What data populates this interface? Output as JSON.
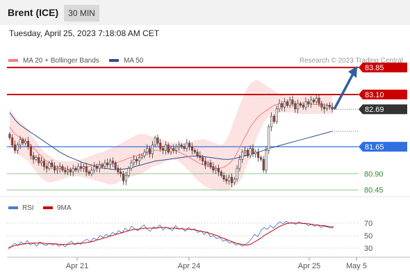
{
  "header": {
    "instrument": "Brent (ICE)",
    "timeframe": "30 MIN"
  },
  "timestamp": "Tuesday, April 25, 2023 7:18:08 AM CET",
  "colors": {
    "ma20": "#f08080",
    "ma50": "#2e4f8c",
    "bands_fill": "#fde2e2",
    "candle_up": "#ffffff",
    "candle_down": "#c0392b",
    "resistance": "#cc0000",
    "pivot": "#2f6fe0",
    "support": "#2e8b2e",
    "arrow": "#2f5f9f",
    "rsi": "#4a78d0",
    "rsi_ma": "#cc0000"
  },
  "chart_data": [
    {
      "type": "candlestick",
      "legend": [
        {
          "name": "MA 20 + Bollinger Bands",
          "color": "#f08080"
        },
        {
          "name": "MA 50",
          "color": "#2e4f8c"
        }
      ],
      "credit": "Research © 2023 Trading Central",
      "x_ticks": [
        "Apr 21",
        "Apr 24",
        "Apr 25",
        "May 5"
      ],
      "ylim": [
        80.3,
        83.95
      ],
      "levels": [
        {
          "value": 83.85,
          "label": "83.85",
          "kind": "resistance"
        },
        {
          "value": 83.1,
          "label": "83.10",
          "kind": "resistance"
        },
        {
          "value": 82.69,
          "label": "82.69",
          "kind": "last"
        },
        {
          "value": 81.65,
          "label": "81.65",
          "kind": "pivot"
        },
        {
          "value": 80.9,
          "label": "80.90",
          "kind": "support"
        },
        {
          "value": 80.45,
          "label": "80.45",
          "kind": "support"
        }
      ],
      "close": [
        81.9,
        81.7,
        81.55,
        81.7,
        81.85,
        81.75,
        81.8,
        81.65,
        81.4,
        81.3,
        81.35,
        81.2,
        81.25,
        81.1,
        81.05,
        81.2,
        81.1,
        81.0,
        81.05,
        81.1,
        81.0,
        80.95,
        81.0,
        80.95,
        81.05,
        81.0,
        81.1,
        81.05,
        81.1,
        80.95,
        80.9,
        81.0,
        81.1,
        81.05,
        81.15,
        81.1,
        81.2,
        81.15,
        81.25,
        81.2,
        81.05,
        80.95,
        80.9,
        80.7,
        80.85,
        81.05,
        81.2,
        81.3,
        81.25,
        81.35,
        81.4,
        81.5,
        81.6,
        81.45,
        81.7,
        81.9,
        81.75,
        81.6,
        81.55,
        81.7,
        81.5,
        81.6,
        81.55,
        81.65,
        81.7,
        81.65,
        81.6,
        81.75,
        81.65,
        81.55,
        81.5,
        81.4,
        81.35,
        81.25,
        81.15,
        81.2,
        81.1,
        81.0,
        81.05,
        80.95,
        80.85,
        80.75,
        80.7,
        80.8,
        80.65,
        80.75,
        81.05,
        81.3,
        81.5,
        81.55,
        81.4,
        81.6,
        81.45,
        81.5,
        81.35,
        81.3,
        81.0,
        81.55,
        82.2,
        82.5,
        82.35,
        82.7,
        82.85,
        82.75,
        82.9,
        82.8,
        82.95,
        82.85,
        82.7,
        82.85,
        82.8,
        82.75,
        82.9,
        82.85,
        82.95,
        82.9,
        83.0,
        82.85,
        82.75,
        82.7,
        82.8,
        82.75,
        82.69
      ],
      "ma20": [
        82.2,
        82.1,
        82.0,
        81.95,
        81.9,
        81.85,
        81.8,
        81.75,
        81.7,
        81.6,
        81.55,
        81.45,
        81.4,
        81.3,
        81.25,
        81.2,
        81.15,
        81.12,
        81.1,
        81.08,
        81.05,
        81.05,
        81.03,
        81.02,
        81.02,
        81.03,
        81.05,
        81.05,
        81.07,
        81.08,
        81.1,
        81.12,
        81.13,
        81.15,
        81.15,
        81.15,
        81.15,
        81.15,
        81.17,
        81.18,
        81.2,
        81.22,
        81.25,
        81.27,
        81.3,
        81.33,
        81.35,
        81.38,
        81.4,
        81.42,
        81.45,
        81.47,
        81.5,
        81.52,
        81.53,
        81.55,
        81.55,
        81.56,
        81.57,
        81.58,
        81.57,
        81.56,
        81.55,
        81.53,
        81.5,
        81.47,
        81.43,
        81.4,
        81.35,
        81.3,
        81.27,
        81.22,
        81.18,
        81.15,
        81.12,
        81.1,
        81.08,
        81.06,
        81.05,
        81.05,
        81.06,
        81.08,
        81.12,
        81.18,
        81.25,
        81.35,
        81.48,
        81.62,
        81.78,
        81.92,
        82.05,
        82.2,
        82.3,
        82.4,
        82.48,
        82.55,
        82.6,
        82.65,
        82.7,
        82.75,
        82.8,
        82.82,
        82.83,
        82.84,
        82.84,
        82.84,
        82.84,
        82.83,
        82.83,
        82.83,
        82.83,
        82.83,
        82.83,
        82.83,
        82.83,
        82.82,
        82.82,
        82.82,
        82.81,
        82.81,
        82.8,
        82.8,
        82.8
      ],
      "bb_upper": [
        82.7,
        82.6,
        82.5,
        82.4,
        82.35,
        82.3,
        82.2,
        82.1,
        82.0,
        81.9,
        81.8,
        81.7,
        81.6,
        81.5,
        81.45,
        81.4,
        81.35,
        81.3,
        81.28,
        81.26,
        81.25,
        81.25,
        81.24,
        81.24,
        81.25,
        81.26,
        81.28,
        81.3,
        81.32,
        81.35,
        81.38,
        81.4,
        81.43,
        81.46,
        81.48,
        81.5,
        81.53,
        81.56,
        81.6,
        81.63,
        81.66,
        81.7,
        81.74,
        81.78,
        81.82,
        81.86,
        81.9,
        81.94,
        81.98,
        82.0,
        82.0,
        82.0,
        81.98,
        81.95,
        81.92,
        81.9,
        81.88,
        81.86,
        81.84,
        81.82,
        81.8,
        81.78,
        81.77,
        81.76,
        81.75,
        81.75,
        81.75,
        81.76,
        81.78,
        81.8,
        81.82,
        81.84,
        81.86,
        81.86,
        81.85,
        81.83,
        81.8,
        81.77,
        81.74,
        81.71,
        81.7,
        81.75,
        81.85,
        82.0,
        82.2,
        82.4,
        82.6,
        82.8,
        83.0,
        83.15,
        83.3,
        83.4,
        83.45,
        83.5,
        83.5,
        83.45,
        83.4,
        83.35,
        83.3,
        83.25,
        83.2,
        83.15,
        83.12,
        83.1,
        83.08,
        83.07,
        83.06,
        83.05,
        83.05,
        83.05,
        83.05,
        83.05,
        83.06,
        83.07,
        83.08,
        83.08,
        83.08,
        83.08,
        83.08,
        83.08,
        83.08,
        83.08,
        83.08
      ],
      "bb_lower": [
        81.7,
        81.6,
        81.5,
        81.45,
        81.4,
        81.35,
        81.3,
        81.25,
        81.15,
        81.05,
        80.95,
        80.85,
        80.78,
        80.72,
        80.68,
        80.66,
        80.66,
        80.68,
        80.7,
        80.72,
        80.75,
        80.78,
        80.8,
        80.82,
        80.83,
        80.83,
        80.83,
        80.82,
        80.8,
        80.78,
        80.76,
        80.74,
        80.72,
        80.7,
        80.68,
        80.66,
        80.64,
        80.62,
        80.6,
        80.6,
        80.62,
        80.66,
        80.7,
        80.74,
        80.78,
        80.8,
        80.82,
        80.84,
        80.86,
        80.88,
        80.9,
        80.95,
        81.0,
        81.05,
        81.1,
        81.12,
        81.14,
        81.16,
        81.2,
        81.24,
        81.26,
        81.28,
        81.3,
        81.28,
        81.24,
        81.18,
        81.12,
        81.04,
        80.96,
        80.88,
        80.8,
        80.72,
        80.66,
        80.6,
        80.55,
        80.5,
        80.48,
        80.46,
        80.44,
        80.42,
        80.42,
        80.42,
        80.42,
        80.45,
        80.5,
        80.55,
        80.6,
        80.68,
        80.8,
        81.0,
        81.2,
        81.4,
        81.6,
        81.8,
        82.0,
        82.15,
        82.3,
        82.4,
        82.48,
        82.54,
        82.58,
        82.6,
        82.6,
        82.6,
        82.6,
        82.6,
        82.6,
        82.6,
        82.58,
        82.56,
        82.56,
        82.56,
        82.56,
        82.56,
        82.56,
        82.56,
        82.56,
        82.56,
        82.56,
        82.56,
        82.56,
        82.56,
        82.56
      ],
      "ma50": [
        82.6,
        82.5,
        82.4,
        82.32,
        82.25,
        82.2,
        82.15,
        82.1,
        82.05,
        82.0,
        81.95,
        81.9,
        81.85,
        81.8,
        81.75,
        81.7,
        81.65,
        81.6,
        81.55,
        81.5,
        81.46,
        81.42,
        81.38,
        81.35,
        81.32,
        81.29,
        81.26,
        81.23,
        81.2,
        81.18,
        81.16,
        81.14,
        81.12,
        81.1,
        81.08,
        81.06,
        81.05,
        81.04,
        81.03,
        81.02,
        81.02,
        81.02,
        81.02,
        81.03,
        81.04,
        81.05,
        81.07,
        81.09,
        81.11,
        81.13,
        81.15,
        81.17,
        81.19,
        81.21,
        81.23,
        81.25,
        81.26,
        81.27,
        81.28,
        81.29,
        81.3,
        81.31,
        81.32,
        81.33,
        81.34,
        81.35,
        81.36,
        81.37,
        81.38,
        81.39,
        81.39,
        81.39,
        81.39,
        81.38,
        81.37,
        81.36,
        81.35,
        81.34,
        81.33,
        81.32,
        81.31,
        81.3,
        81.3,
        81.3,
        81.31,
        81.32,
        81.34,
        81.36,
        81.38,
        81.4,
        81.42,
        81.44,
        81.46,
        81.48,
        81.5,
        81.52,
        81.55,
        81.58,
        81.6,
        81.62,
        81.64,
        81.66,
        81.68,
        81.7,
        81.72,
        81.74,
        81.76,
        81.78,
        81.8,
        81.82,
        81.84,
        81.86,
        81.88,
        81.9,
        81.92,
        81.94,
        81.96,
        81.98,
        82.0,
        82.02,
        82.04,
        82.06,
        82.08
      ],
      "projection": {
        "from": 82.69,
        "to": 83.85,
        "direction": "up"
      }
    },
    {
      "type": "line",
      "legend": [
        {
          "name": "RSI",
          "color": "#4a78d0"
        },
        {
          "name": "9MA",
          "color": "#cc0000"
        }
      ],
      "y_ticks": [
        70,
        50,
        30
      ],
      "ylim": [
        20,
        80
      ],
      "rsi": [
        28,
        33,
        38,
        34,
        40,
        36,
        42,
        35,
        38,
        33,
        40,
        36,
        34,
        38,
        35,
        37,
        33,
        36,
        32,
        38,
        41,
        35,
        39,
        36,
        42,
        44,
        40,
        46,
        43,
        50,
        47,
        52,
        49,
        55,
        52,
        58,
        54,
        62,
        57,
        65,
        61,
        58,
        63,
        67,
        60,
        57,
        64,
        62,
        67,
        59,
        63,
        61,
        58,
        66,
        60,
        62,
        57,
        63,
        59,
        61,
        55,
        58,
        52,
        56,
        48,
        50,
        45,
        47,
        41,
        43,
        38,
        40,
        35,
        37,
        33,
        36,
        39,
        45,
        52,
        48,
        58,
        63,
        60,
        66,
        62,
        68,
        72,
        69,
        73,
        70,
        71,
        68,
        72,
        69,
        70,
        66,
        68,
        65,
        67,
        63,
        65,
        64,
        62,
        63
      ],
      "rsi_ma": [
        31,
        32,
        34,
        35,
        36,
        37,
        37,
        38,
        38,
        38,
        38,
        38,
        37,
        37,
        37,
        37,
        36,
        36,
        36,
        36,
        37,
        37,
        37,
        38,
        38,
        39,
        40,
        41,
        43,
        44,
        46,
        47,
        49,
        50,
        52,
        53,
        55,
        56,
        58,
        59,
        60,
        60,
        61,
        62,
        62,
        62,
        62,
        62,
        63,
        63,
        63,
        62,
        62,
        62,
        61,
        61,
        60,
        60,
        60,
        59,
        58,
        57,
        56,
        55,
        53,
        52,
        50,
        48,
        46,
        44,
        42,
        40,
        38,
        37,
        36,
        35,
        35,
        37,
        40,
        43,
        46,
        50,
        53,
        56,
        59,
        62,
        65,
        67,
        69,
        70,
        70,
        70,
        70,
        70,
        69,
        69,
        68,
        67,
        67,
        66,
        66,
        65,
        64,
        64
      ]
    }
  ]
}
